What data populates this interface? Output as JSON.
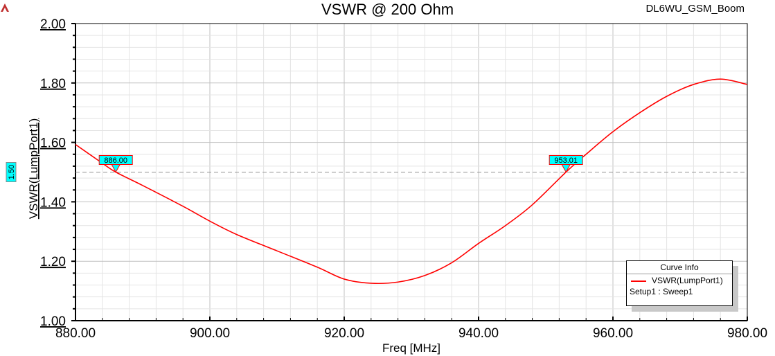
{
  "header": {
    "title": "VSWR @ 200 Ohm",
    "project": "DL6WU_GSM_Boom",
    "logo_icon": "ansys-logo-icon"
  },
  "legend": {
    "title": "Curve Info",
    "series": "VSWR(LumpPort1)",
    "setup": "Setup1 : Sweep1"
  },
  "chart_data": {
    "type": "line",
    "title": "VSWR @ 200 Ohm",
    "xlabel": "Freq [MHz]",
    "ylabel": "VSWR(LumpPort1)",
    "xlim": [
      880,
      980
    ],
    "ylim": [
      1.0,
      2.0
    ],
    "xticks": [
      "880.00",
      "900.00",
      "920.00",
      "940.00",
      "960.00",
      "980.00"
    ],
    "yticks": [
      "1.00",
      "1.20",
      "1.40",
      "1.60",
      "1.80",
      "2.00"
    ],
    "grid": true,
    "legend_position": "bottom-right",
    "series": [
      {
        "name": "VSWR(LumpPort1)",
        "color": "#ff0000",
        "x": [
          880,
          884,
          886,
          890,
          896,
          900,
          904,
          910,
          916,
          920,
          924,
          928,
          932,
          936,
          940,
          944,
          948,
          953.01,
          956,
          960,
          964,
          968,
          972,
          976,
          980
        ],
        "y": [
          1.593,
          1.53,
          1.5,
          1.455,
          1.385,
          1.335,
          1.29,
          1.235,
          1.18,
          1.14,
          1.126,
          1.13,
          1.152,
          1.195,
          1.26,
          1.32,
          1.39,
          1.5,
          1.56,
          1.636,
          1.7,
          1.755,
          1.795,
          1.813,
          1.795
        ]
      }
    ],
    "markers": [
      {
        "x_label": "886.00",
        "x": 886,
        "y": 1.5
      },
      {
        "x_label": "953.01",
        "x": 953.01,
        "y": 1.5
      }
    ],
    "reference_line": {
      "label": "1.50",
      "y": 1.5
    }
  }
}
